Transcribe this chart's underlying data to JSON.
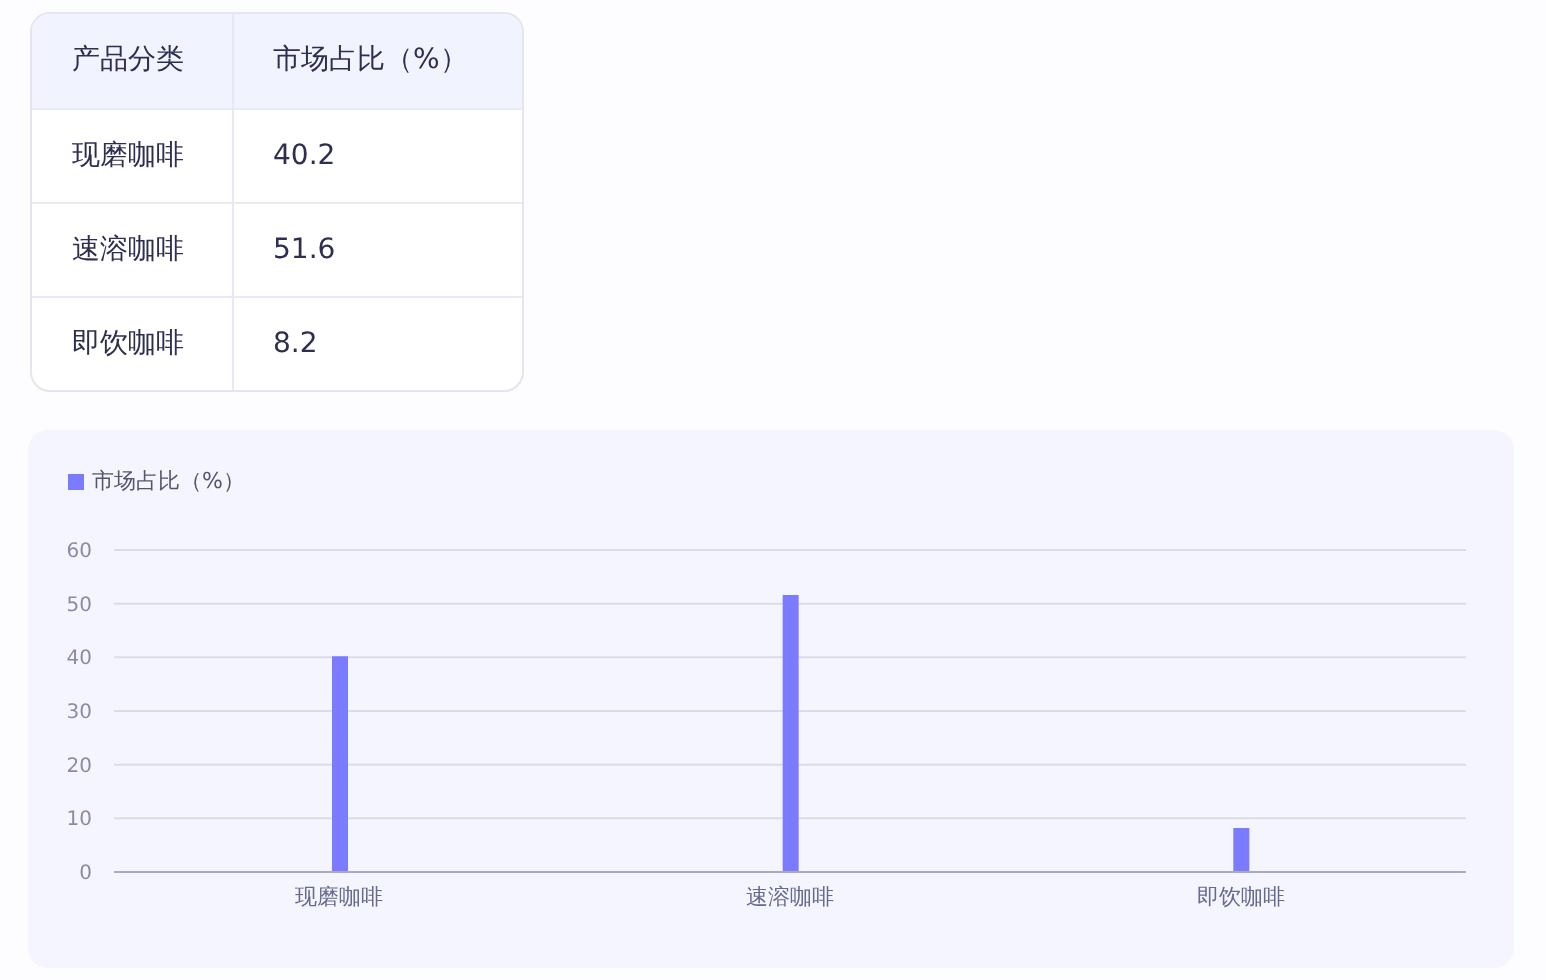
{
  "chart_data": [
    {
      "type": "other",
      "categories": [
        "现磨咖啡",
        "速溶咖啡",
        "即饮咖啡"
      ],
      "series": [
        {
          "name": "市场占比（%）",
          "values": [
            40.2,
            51.6,
            8.2
          ]
        }
      ],
      "annotations": [
        "产品分类"
      ],
      "data_labels": true
    },
    {
      "type": "bar",
      "categories": [
        "现磨咖啡",
        "速溶咖啡",
        "即饮咖啡"
      ],
      "series": [
        {
          "name": "市场占比（%）",
          "color": "#7b7bff",
          "values": [
            40.2,
            51.6,
            8.2
          ]
        }
      ],
      "ylim": [
        0,
        60
      ],
      "yticks": [
        0,
        10,
        20,
        30,
        40,
        50,
        60
      ],
      "grid": "y",
      "legend": "top left"
    }
  ]
}
